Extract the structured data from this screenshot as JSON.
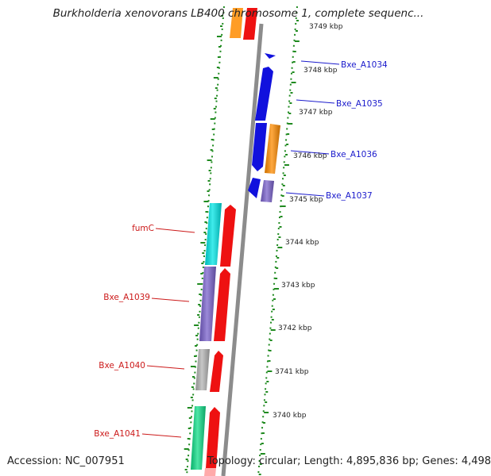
{
  "title": "Burkholderia xenovorans LB400 chromosome 1, complete sequenc...",
  "footer": {
    "accession": "Accession: NC_007951",
    "topology": "Topology: circular; Length: 4,895,836 bp; Genes: 4,498"
  },
  "colors": {
    "backbone": "#8c8c8c",
    "ticks": "#1f8a1f",
    "forward_label": "#1a1acc",
    "reverse_label": "#cc1a1a"
  },
  "kbp_labels": [
    {
      "kbp": 3749,
      "text": "3749 kbp"
    },
    {
      "kbp": 3748,
      "text": "3748 kbp"
    },
    {
      "kbp": 3747,
      "text": "3747 kbp"
    },
    {
      "kbp": 3746,
      "text": "3746 kbp"
    },
    {
      "kbp": 3745,
      "text": "3745 kbp"
    },
    {
      "kbp": 3744,
      "text": "3744 kbp"
    },
    {
      "kbp": 3743,
      "text": "3743 kbp"
    },
    {
      "kbp": 3742,
      "text": "3742 kbp"
    },
    {
      "kbp": 3741,
      "text": "3741 kbp"
    },
    {
      "kbp": 3740,
      "text": "3740 kbp"
    }
  ],
  "gene_labels": [
    {
      "text": "Bxe_A1034",
      "strand": "forward"
    },
    {
      "text": "Bxe_A1035",
      "strand": "forward"
    },
    {
      "text": "Bxe_A1036",
      "strand": "forward"
    },
    {
      "text": "Bxe_A1037",
      "strand": "forward"
    },
    {
      "text": "fumC",
      "strand": "reverse"
    },
    {
      "text": "Bxe_A1039",
      "strand": "reverse"
    },
    {
      "text": "Bxe_A1040",
      "strand": "reverse"
    },
    {
      "text": "Bxe_A1041",
      "strand": "reverse"
    }
  ],
  "features": [
    {
      "name": "gene-top-a",
      "color": "#ff8c00",
      "track": "outer-left"
    },
    {
      "name": "gene-top-b",
      "color": "#ee1111",
      "track": "inner-left"
    },
    {
      "name": "gene-1034",
      "color": "#1111dd",
      "track": "inner-right"
    },
    {
      "name": "gene-1035",
      "color": "#1111dd",
      "track": "inner-right"
    },
    {
      "name": "gene-1036",
      "color": "#1111dd",
      "track": "inner-right"
    },
    {
      "name": "cog-1036",
      "color": "#ff8c00",
      "track": "outer-right"
    },
    {
      "name": "gene-1037",
      "color": "#1111dd",
      "track": "inner-right"
    },
    {
      "name": "cog-1037",
      "color": "#7a62cc",
      "track": "outer-right"
    },
    {
      "name": "gene-fumC",
      "color": "#ee1111",
      "track": "inner-left"
    },
    {
      "name": "cog-fumC",
      "color": "#00e5e5",
      "track": "outer-left"
    },
    {
      "name": "gene-1039",
      "color": "#ee1111",
      "track": "inner-left"
    },
    {
      "name": "cog-1039",
      "color": "#7a62cc",
      "track": "outer-left"
    },
    {
      "name": "gene-1040",
      "color": "#ee1111",
      "track": "inner-left"
    },
    {
      "name": "cog-1040",
      "color": "#b4b4b4",
      "track": "outer-left"
    },
    {
      "name": "gene-1041",
      "color": "#ee1111",
      "track": "inner-left"
    },
    {
      "name": "cog-1041",
      "color": "#11dd88",
      "track": "outer-left"
    }
  ]
}
